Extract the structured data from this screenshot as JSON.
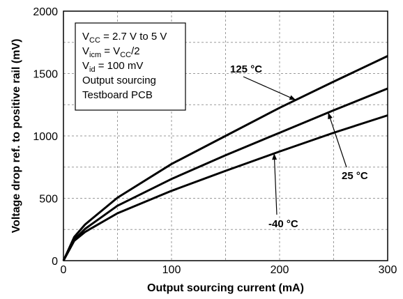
{
  "chart_data": {
    "type": "line",
    "title": "",
    "xlabel": "Output sourcing  current (mA)",
    "ylabel": "Voltage drop ref. to positive rail (mV)",
    "xlim": [
      0,
      300
    ],
    "ylim": [
      0,
      2000
    ],
    "xticks": [
      "0",
      "100",
      "200",
      "300"
    ],
    "yticks": [
      "0",
      "500",
      "1000",
      "1500",
      "2000"
    ],
    "grid": true,
    "series": [
      {
        "name": "125 °C",
        "x": [
          0,
          10,
          20,
          50,
          100,
          150,
          200,
          250,
          300
        ],
        "values": [
          0,
          190,
          290,
          505,
          775,
          1000,
          1225,
          1435,
          1640
        ]
      },
      {
        "name": "25 °C",
        "x": [
          0,
          10,
          20,
          50,
          100,
          150,
          200,
          250,
          300
        ],
        "values": [
          0,
          170,
          255,
          440,
          655,
          845,
          1025,
          1205,
          1380
        ]
      },
      {
        "name": "-40 °C",
        "x": [
          0,
          10,
          20,
          50,
          100,
          150,
          200,
          250,
          300
        ],
        "values": [
          0,
          160,
          230,
          380,
          560,
          720,
          875,
          1025,
          1165
        ]
      }
    ],
    "annotations": [
      {
        "text": "125 °C",
        "series": 0,
        "target_x": 215
      },
      {
        "text": "25 °C",
        "series": 1,
        "target_x": 245
      },
      {
        "text": "-40 °C",
        "series": 2,
        "target_x": 195
      }
    ],
    "conditions": [
      {
        "parts": [
          {
            "t": "V"
          },
          {
            "t": "CC",
            "sub": true
          },
          {
            "t": " = 2.7 V to 5 V"
          }
        ]
      },
      {
        "parts": [
          {
            "t": "V"
          },
          {
            "t": "icm",
            "sub": true
          },
          {
            "t": " = V"
          },
          {
            "t": "CC",
            "sub": true
          },
          {
            "t": "/2"
          }
        ]
      },
      {
        "parts": [
          {
            "t": "V"
          },
          {
            "t": "id",
            "sub": true
          },
          {
            "t": " = 100 mV"
          }
        ]
      },
      {
        "parts": [
          {
            "t": "Output sourcing"
          }
        ]
      },
      {
        "parts": [
          {
            "t": "Testboard PCB"
          }
        ]
      }
    ]
  }
}
